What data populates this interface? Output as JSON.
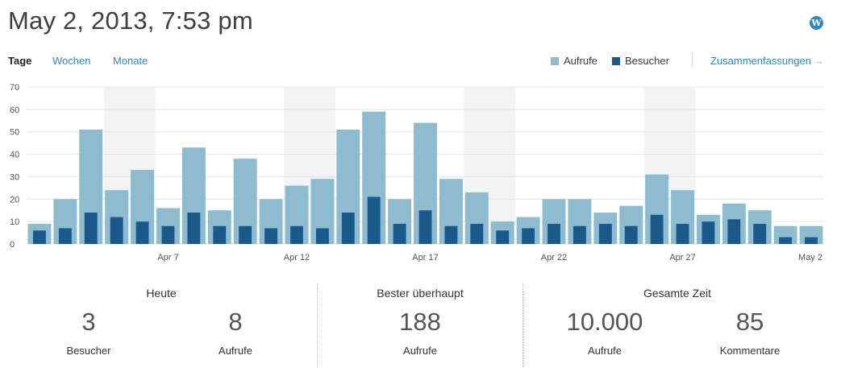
{
  "header": {
    "title": "May 2, 2013, 7:53 pm",
    "logo_icon": "wordpress-icon",
    "logo_glyph": "W"
  },
  "period_tabs": {
    "active": "Tage",
    "weeks": "Wochen",
    "months": "Monate"
  },
  "legend": {
    "views": "Aufrufe",
    "visitors": "Besucher"
  },
  "summaries_link": {
    "label": "Zusammenfassungen",
    "arrow": "→"
  },
  "colors": {
    "views": "#8fbbcf",
    "visitors": "#1a5a8a",
    "weekend": "#f3f3f3",
    "grid": "#e4e4e4",
    "link": "#2e88c1"
  },
  "chart_data": {
    "type": "bar",
    "categories": [
      "Apr 2",
      "Apr 3",
      "Apr 4",
      "Apr 5",
      "Apr 6",
      "Apr 7",
      "Apr 8",
      "Apr 9",
      "Apr 10",
      "Apr 11",
      "Apr 12",
      "Apr 13",
      "Apr 14",
      "Apr 15",
      "Apr 16",
      "Apr 17",
      "Apr 18",
      "Apr 19",
      "Apr 20",
      "Apr 21",
      "Apr 22",
      "Apr 23",
      "Apr 24",
      "Apr 25",
      "Apr 26",
      "Apr 27",
      "Apr 28",
      "Apr 29",
      "Apr 30",
      "May 1",
      "May 2"
    ],
    "series": [
      {
        "name": "Aufrufe",
        "values": [
          9,
          20,
          51,
          24,
          33,
          16,
          43,
          15,
          38,
          20,
          26,
          29,
          51,
          59,
          20,
          54,
          29,
          23,
          10,
          12,
          20,
          20,
          14,
          17,
          31,
          24,
          13,
          18,
          15,
          8,
          8
        ]
      },
      {
        "name": "Besucher",
        "values": [
          6,
          7,
          14,
          12,
          10,
          8,
          14,
          8,
          8,
          7,
          8,
          7,
          14,
          21,
          9,
          15,
          8,
          9,
          6,
          7,
          9,
          8,
          9,
          8,
          13,
          9,
          10,
          11,
          9,
          3,
          3
        ]
      }
    ],
    "ylim": [
      0,
      70
    ],
    "yticks": [
      0,
      10,
      20,
      30,
      40,
      50,
      60,
      70
    ],
    "xtick_labels": [
      {
        "index": 5,
        "label": "Apr 7"
      },
      {
        "index": 10,
        "label": "Apr 12"
      },
      {
        "index": 15,
        "label": "Apr 17"
      },
      {
        "index": 20,
        "label": "Apr 22"
      },
      {
        "index": 25,
        "label": "Apr 27"
      },
      {
        "index": 30,
        "label": "May 2"
      }
    ],
    "weekend_ranges": [
      [
        3,
        4
      ],
      [
        10,
        11
      ],
      [
        17,
        18
      ],
      [
        24,
        25
      ]
    ],
    "grid": true,
    "legend_position": "top-right"
  },
  "stats": {
    "today": {
      "title": "Heute",
      "visitors_value": "3",
      "visitors_label": "Besucher",
      "views_value": "8",
      "views_label": "Aufrufe"
    },
    "best": {
      "title": "Bester überhaupt",
      "value": "188",
      "label": "Aufrufe"
    },
    "total": {
      "title": "Gesamte Zeit",
      "views_value": "10.000",
      "views_label": "Aufrufe",
      "comments_value": "85",
      "comments_label": "Kommentare"
    }
  }
}
